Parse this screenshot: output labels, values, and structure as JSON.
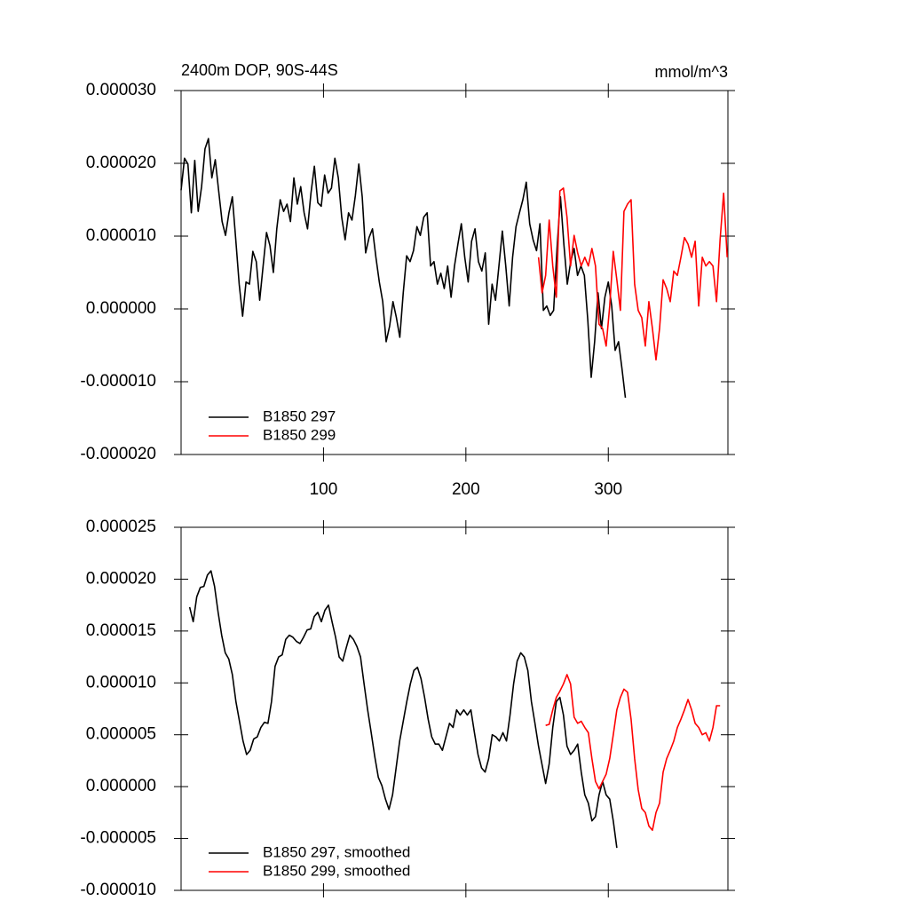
{
  "chart_data": [
    {
      "type": "line",
      "title": "2400m DOP, 90S-44S",
      "units": "mmol/m^3",
      "legend_position": "lower left",
      "xlim": [
        0,
        384
      ],
      "xticks": [
        100,
        200,
        300
      ],
      "ylim": [
        -2e-05,
        3e-05
      ],
      "yticks": [
        {
          "value": -2e-05,
          "label": "-0.000020"
        },
        {
          "value": -1e-05,
          "label": "-0.000010"
        },
        {
          "value": 0,
          "label": "0.000000"
        },
        {
          "value": 1e-05,
          "label": "0.000010"
        },
        {
          "value": 2e-05,
          "label": "0.000020"
        },
        {
          "value": 3e-05,
          "label": "0.000030"
        }
      ],
      "series": [
        {
          "name": "B1850 297",
          "color": "#000000",
          "x": [
            0,
            2.4,
            4.8,
            7.2,
            9.6,
            12,
            14.4,
            16.8,
            19.2,
            21.6,
            24,
            26.4,
            28.8,
            31.2,
            33.6,
            36,
            38.4,
            40.8,
            43.2,
            45.6,
            48,
            50.4,
            52.8,
            55.2,
            57.6,
            60,
            62.4,
            64.8,
            67.2,
            69.6,
            72,
            74.4,
            76.8,
            79.2,
            81.6,
            84,
            86.4,
            88.8,
            91.2,
            93.6,
            96,
            98.4,
            100.8,
            103.2,
            105.6,
            108,
            110.4,
            112.8,
            115.2,
            117.6,
            120,
            122.4,
            124.8,
            127.2,
            129.6,
            132,
            134.4,
            136.8,
            139.2,
            141.6,
            144,
            146.4,
            148.8,
            151.2,
            153.6,
            156,
            158.4,
            160.8,
            163.2,
            165.6,
            168,
            170.4,
            172.8,
            175.2,
            177.6,
            180,
            182.4,
            184.8,
            187.2,
            189.6,
            192,
            194.4,
            196.8,
            199.2,
            201.6,
            204,
            206.4,
            208.8,
            211.2,
            213.6,
            216,
            218.4,
            220.8,
            223.2,
            225.6,
            228,
            230.4,
            232.8,
            235.2,
            237.6,
            240,
            242.4,
            244.8,
            247.2,
            249.6,
            252,
            254.4,
            256.8,
            259.2,
            261.6,
            264,
            266.4,
            268.8,
            271.2,
            273.6,
            276,
            278.4,
            280.8,
            283.2,
            285.6,
            288,
            290.4,
            292.8,
            295.2,
            297.6,
            300,
            302.4,
            304.8,
            307.2,
            309.6,
            312
          ],
          "values": [
            1.63e-05,
            2.07e-05,
            1.99e-05,
            1.32e-05,
            2.04e-05,
            1.34e-05,
            1.68e-05,
            2.2e-05,
            2.34e-05,
            1.8e-05,
            2.05e-05,
            1.62e-05,
            1.2e-05,
            1.01e-05,
            1.32e-05,
            1.54e-05,
            9.5e-06,
            3.4e-06,
            -1e-06,
            3.7e-06,
            3.4e-06,
            7.9e-06,
            6.5e-06,
            1.2e-06,
            5.9e-06,
            1.05e-05,
            8.7e-06,
            5e-06,
            1.1e-05,
            1.5e-05,
            1.34e-05,
            1.44e-05,
            1.2e-05,
            1.8e-05,
            1.44e-05,
            1.68e-05,
            1.32e-05,
            1.1e-05,
            1.59e-05,
            1.96e-05,
            1.46e-05,
            1.41e-05,
            1.84e-05,
            1.59e-05,
            1.66e-05,
            2.07e-05,
            1.8e-05,
            1.26e-05,
            9.5e-06,
            1.32e-05,
            1.22e-05,
            1.56e-05,
            1.99e-05,
            1.54e-05,
            7.7e-06,
            9.8e-06,
            1.1e-05,
            7.1e-06,
            3.7e-06,
            1e-06,
            -4.5e-06,
            -2.4e-06,
            1e-06,
            -1.2e-06,
            -3.9e-06,
            2.2e-06,
            7.3e-06,
            6.5e-06,
            8e-06,
            1.13e-05,
            1.01e-05,
            1.26e-05,
            1.32e-05,
            5.9e-06,
            6.5e-06,
            3.4e-06,
            4.9e-06,
            2.8e-06,
            5.9e-06,
            1.6e-06,
            5.9e-06,
            8.9e-06,
            1.17e-05,
            7.1e-06,
            3.7e-06,
            9.3e-06,
            1.1e-05,
            6.5e-06,
            5.2e-06,
            7.7e-06,
            -2.1e-06,
            3.4e-06,
            1.2e-06,
            5.9e-06,
            1.07e-05,
            5.9e-06,
            4e-07,
            7.1e-06,
            1.13e-05,
            1.32e-05,
            1.5e-05,
            1.74e-05,
            1.17e-05,
            9.5e-06,
            8e-06,
            1.17e-05,
            -2e-07,
            4e-07,
            -9e-07,
            -2e-07,
            8.3e-06,
            1.54e-05,
            8.9e-06,
            3.4e-06,
            6.5e-06,
            8.3e-06,
            4.6e-06,
            5.9e-06,
            4.6e-06,
            -1.5e-06,
            -9.4e-06,
            -4.5e-06,
            2.2e-06,
            -2.7e-06,
            1.6e-06,
            3.7e-06,
            4e-07,
            -5.7e-06,
            -4.5e-06,
            -8.2e-06,
            -1.22e-05
          ]
        },
        {
          "name": "B1850 299",
          "color": "#ff0000",
          "x": [
            251,
            253.5,
            256,
            258.5,
            261,
            263.5,
            266,
            268.5,
            271,
            273.5,
            276,
            278.5,
            281,
            283.5,
            286,
            288.5,
            291,
            293.5,
            296,
            298.5,
            301,
            303.5,
            306,
            308.5,
            311,
            313.5,
            316,
            318.5,
            321,
            323.5,
            326,
            328.5,
            331,
            333.5,
            336,
            338.5,
            341,
            343.5,
            346,
            348.5,
            351,
            353.5,
            356,
            358.5,
            361,
            363.5,
            366,
            368.5,
            371,
            373.5,
            376,
            378.5,
            381,
            383.5
          ],
          "values": [
            7.1e-06,
            2.2e-06,
            4.6e-06,
            1.22e-05,
            5.9e-06,
            1.6e-06,
            1.62e-05,
            1.66e-05,
            1.26e-05,
            5.9e-06,
            1.01e-05,
            7.7e-06,
            5.9e-06,
            7.1e-06,
            5.9e-06,
            8.3e-06,
            5.9e-06,
            -2.1e-06,
            -2.7e-06,
            -5.1e-06,
            4e-07,
            7.9e-06,
            4e-06,
            -2e-07,
            1.34e-05,
            1.44e-05,
            1.5e-05,
            3.4e-06,
            -2e-07,
            -1.2e-06,
            -5.1e-06,
            1e-06,
            -2.7e-06,
            -7e-06,
            -2.7e-06,
            4e-06,
            2.8e-06,
            1e-06,
            5.2e-06,
            4.6e-06,
            7.1e-06,
            9.8e-06,
            8.9e-06,
            7.1e-06,
            9.3e-06,
            4e-07,
            7.1e-06,
            5.9e-06,
            6.5e-06,
            5.9e-06,
            1e-06,
            9.5e-06,
            1.59e-05,
            7.1e-06
          ]
        }
      ]
    },
    {
      "type": "line",
      "legend_position": "lower left",
      "xlim": [
        0,
        384
      ],
      "ylim": [
        -1e-05,
        2.5e-05
      ],
      "yticks": [
        {
          "value": -1e-05,
          "label": "-0.000010"
        },
        {
          "value": -5e-06,
          "label": "-0.000005"
        },
        {
          "value": 0,
          "label": "0.000000"
        },
        {
          "value": 5e-06,
          "label": "0.000005"
        },
        {
          "value": 1e-05,
          "label": "0.000010"
        },
        {
          "value": 1.5e-05,
          "label": "0.000015"
        },
        {
          "value": 2e-05,
          "label": "0.000020"
        },
        {
          "value": 2.5e-05,
          "label": "0.000025"
        }
      ],
      "series": [
        {
          "name": "B1850 297, smoothed",
          "color": "#000000",
          "x": [
            6,
            8.5,
            11,
            13.5,
            16,
            18.5,
            21,
            23.5,
            26,
            28.5,
            31,
            33.5,
            36,
            38.5,
            41,
            43.5,
            46,
            48.5,
            51,
            53.5,
            56,
            58.5,
            61,
            63.5,
            66,
            68.5,
            71,
            73.5,
            76,
            78.5,
            81,
            83.5,
            86,
            88.5,
            91,
            93.5,
            96,
            98.5,
            101,
            103.5,
            106,
            108.5,
            111,
            113.5,
            116,
            118.5,
            121,
            123.5,
            126,
            128.5,
            131,
            133.5,
            136,
            138.5,
            141,
            143.5,
            146,
            148.5,
            151,
            153.5,
            156,
            158.5,
            161,
            163.5,
            166,
            168.5,
            171,
            173.5,
            176,
            178.5,
            181,
            183.5,
            186,
            188.5,
            191,
            193.5,
            196,
            198.5,
            201,
            203.5,
            206,
            208.5,
            211,
            213.5,
            216,
            218.5,
            221,
            223.5,
            226,
            228.5,
            231,
            233.5,
            236,
            238.5,
            241,
            243.5,
            246,
            248.5,
            251,
            253.5,
            256,
            258.5,
            261,
            263.5,
            266,
            268.5,
            271,
            273.5,
            276,
            278.5,
            281,
            283.5,
            286,
            288.5,
            291,
            293.5,
            296,
            298.5,
            301,
            303.5,
            306
          ],
          "values": [
            1.73e-05,
            1.59e-05,
            1.83e-05,
            1.92e-05,
            1.93e-05,
            2.04e-05,
            2.08e-05,
            1.93e-05,
            1.68e-05,
            1.46e-05,
            1.29e-05,
            1.23e-05,
            1.08e-05,
            8.2e-06,
            6.3e-06,
            4.4e-06,
            3.1e-06,
            3.5e-06,
            4.6e-06,
            4.8e-06,
            5.7e-06,
            6.2e-06,
            6.1e-06,
            8.2e-06,
            1.16e-05,
            1.25e-05,
            1.27e-05,
            1.42e-05,
            1.46e-05,
            1.44e-05,
            1.4e-05,
            1.38e-05,
            1.44e-05,
            1.51e-05,
            1.52e-05,
            1.64e-05,
            1.68e-05,
            1.59e-05,
            1.7e-05,
            1.75e-05,
            1.59e-05,
            1.44e-05,
            1.25e-05,
            1.21e-05,
            1.34e-05,
            1.46e-05,
            1.42e-05,
            1.35e-05,
            1.25e-05,
            9.9e-06,
            7.4e-06,
            5.2e-06,
            2.9e-06,
            9e-07,
            1e-07,
            -1.2e-06,
            -2.2e-06,
            -8e-07,
            1.8e-06,
            4.4e-06,
            6.3e-06,
            8.2e-06,
            9.9e-06,
            1.12e-05,
            1.15e-05,
            1.04e-05,
            8.6e-06,
            6.5e-06,
            4.8e-06,
            4.1e-06,
            4.1e-06,
            3.5e-06,
            4.8e-06,
            6.1e-06,
            5.7e-06,
            7.4e-06,
            6.9e-06,
            7.4e-06,
            6.9e-06,
            7.4e-06,
            5.2e-06,
            3.1e-06,
            1.8e-06,
            1.4e-06,
            2.7e-06,
            5e-06,
            4.8e-06,
            4.4e-06,
            5.2e-06,
            4.4e-06,
            6.9e-06,
            9.9e-06,
            1.21e-05,
            1.29e-05,
            1.25e-05,
            1.12e-05,
            8.2e-06,
            6.1e-06,
            3.9e-06,
            2.1e-06,
            3e-07,
            2.2e-06,
            5.7e-06,
            8.2e-06,
            8.6e-06,
            6.9e-06,
            3.9e-06,
            3.1e-06,
            3.5e-06,
            4.1e-06,
            1.4e-06,
            -8e-07,
            -1.6e-06,
            -3.3e-06,
            -2.9e-06,
            -8e-07,
            5e-07,
            -8e-07,
            -1.2e-06,
            -3.3e-06,
            -5.9e-06
          ]
        },
        {
          "name": "B1850 299, smoothed",
          "color": "#ff0000",
          "x": [
            256,
            258.5,
            261,
            263.5,
            266,
            268.5,
            271,
            273.5,
            276,
            278.5,
            281,
            283.5,
            286,
            288.5,
            291,
            293.5,
            296,
            298.5,
            301,
            303.5,
            306,
            308.5,
            311,
            313.5,
            316,
            318.5,
            321,
            323.5,
            326,
            328.5,
            331,
            333.5,
            336,
            338.5,
            341,
            343.5,
            346,
            348.5,
            351,
            353.5,
            356,
            358.5,
            361,
            363.5,
            366,
            368.5,
            371,
            373.5,
            376,
            378.5
          ],
          "values": [
            5.9e-06,
            6e-06,
            7.4e-06,
            8.6e-06,
            9.2e-06,
            9.9e-06,
            1.08e-05,
            9.9e-06,
            6.7e-06,
            6.1e-06,
            6.3e-06,
            5.7e-06,
            5.2e-06,
            2.7e-06,
            5e-07,
            -2e-07,
            5e-07,
            1.2e-06,
            2.7e-06,
            5e-06,
            7.4e-06,
            8.6e-06,
            9.4e-06,
            9.1e-06,
            6.5e-06,
            2.7e-06,
            -3e-07,
            -2.1e-06,
            -2.5e-06,
            -3.8e-06,
            -4.2e-06,
            -2.5e-06,
            -1.6e-06,
            1.4e-06,
            2.7e-06,
            3.5e-06,
            4.4e-06,
            5.7e-06,
            6.5e-06,
            7.4e-06,
            8.4e-06,
            7.4e-06,
            6.1e-06,
            5.7e-06,
            5e-06,
            5.2e-06,
            4.4e-06,
            5.7e-06,
            7.8e-06,
            7.8e-06
          ]
        }
      ]
    }
  ]
}
